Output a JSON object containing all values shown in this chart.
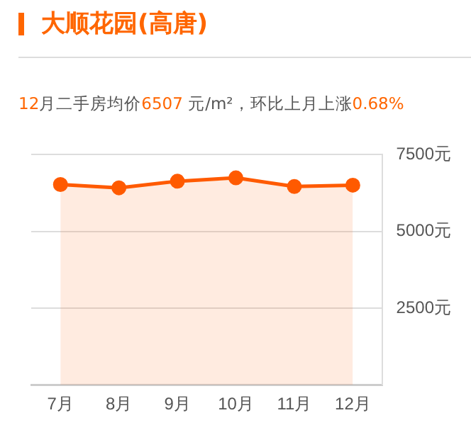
{
  "chart_data": {
    "type": "area",
    "title": "大顺花园(高唐)",
    "subtitle": "12月二手房均价6507 元/m²，环比上月上涨0.68%",
    "categories": [
      "7月",
      "8月",
      "9月",
      "10月",
      "11月",
      "12月"
    ],
    "series": [
      {
        "color": "#ff5a00",
        "values": [
          6528,
          6420,
          6635,
          6745,
          6463,
          6507
        ]
      }
    ],
    "ylim": [
      0,
      7500
    ],
    "yticks": [
      {
        "value": 2500,
        "label": "2500元"
      },
      {
        "value": 5000,
        "label": "5000元"
      },
      {
        "value": 7500,
        "label": "7500元"
      }
    ],
    "grid": "y",
    "marker": "circle"
  }
}
